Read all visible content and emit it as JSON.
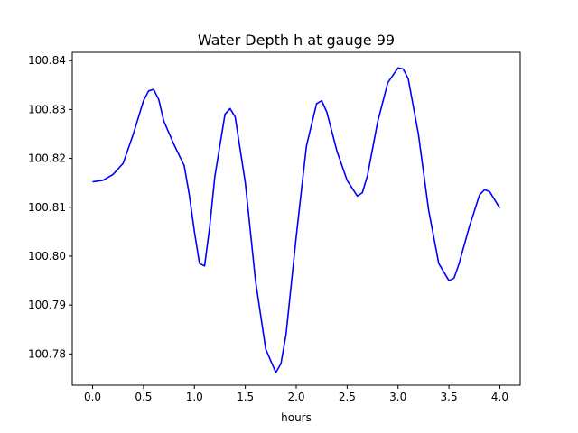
{
  "chart_data": {
    "type": "line",
    "title": "Water Depth h at gauge 99",
    "xlabel": "hours",
    "ylabel": "",
    "xlim": [
      -0.2,
      4.2
    ],
    "ylim": [
      100.7736,
      100.8417
    ],
    "grid": false,
    "legend": "none",
    "x_ticks": [
      0.0,
      0.5,
      1.0,
      1.5,
      2.0,
      2.5,
      3.0,
      3.5,
      4.0
    ],
    "x_tick_labels": [
      "0.0",
      "0.5",
      "1.0",
      "1.5",
      "2.0",
      "2.5",
      "3.0",
      "3.5",
      "4.0"
    ],
    "y_ticks": [
      100.78,
      100.79,
      100.8,
      100.81,
      100.82,
      100.83,
      100.84
    ],
    "y_tick_labels": [
      "100.78",
      "100.79",
      "100.80",
      "100.81",
      "100.82",
      "100.83",
      "100.84"
    ],
    "series": [
      {
        "color": "#0000ff",
        "x": [
          0.0,
          0.1,
          0.2,
          0.3,
          0.4,
          0.5,
          0.55,
          0.6,
          0.65,
          0.7,
          0.8,
          0.9,
          0.95,
          1.0,
          1.05,
          1.1,
          1.15,
          1.2,
          1.3,
          1.35,
          1.4,
          1.5,
          1.6,
          1.7,
          1.8,
          1.85,
          1.9,
          2.0,
          2.1,
          2.2,
          2.25,
          2.3,
          2.4,
          2.5,
          2.6,
          2.65,
          2.7,
          2.8,
          2.9,
          3.0,
          3.05,
          3.1,
          3.2,
          3.3,
          3.4,
          3.5,
          3.55,
          3.6,
          3.7,
          3.8,
          3.85,
          3.9,
          4.0
        ],
        "y": [
          100.8152,
          100.8155,
          100.8167,
          100.819,
          100.825,
          100.8318,
          100.8338,
          100.8341,
          100.832,
          100.8276,
          100.8228,
          100.8185,
          100.8125,
          100.805,
          100.7985,
          100.798,
          100.806,
          100.8162,
          100.829,
          100.8302,
          100.8285,
          100.815,
          100.795,
          100.781,
          100.7762,
          100.778,
          100.784,
          100.804,
          100.8225,
          100.8312,
          100.8318,
          100.8295,
          100.8215,
          100.8155,
          100.8123,
          100.813,
          100.8165,
          100.8275,
          100.8355,
          100.8385,
          100.8383,
          100.8363,
          100.825,
          100.8095,
          100.7985,
          100.795,
          100.7955,
          100.7985,
          100.806,
          100.8125,
          100.8136,
          100.8132,
          100.8098
        ]
      }
    ]
  }
}
